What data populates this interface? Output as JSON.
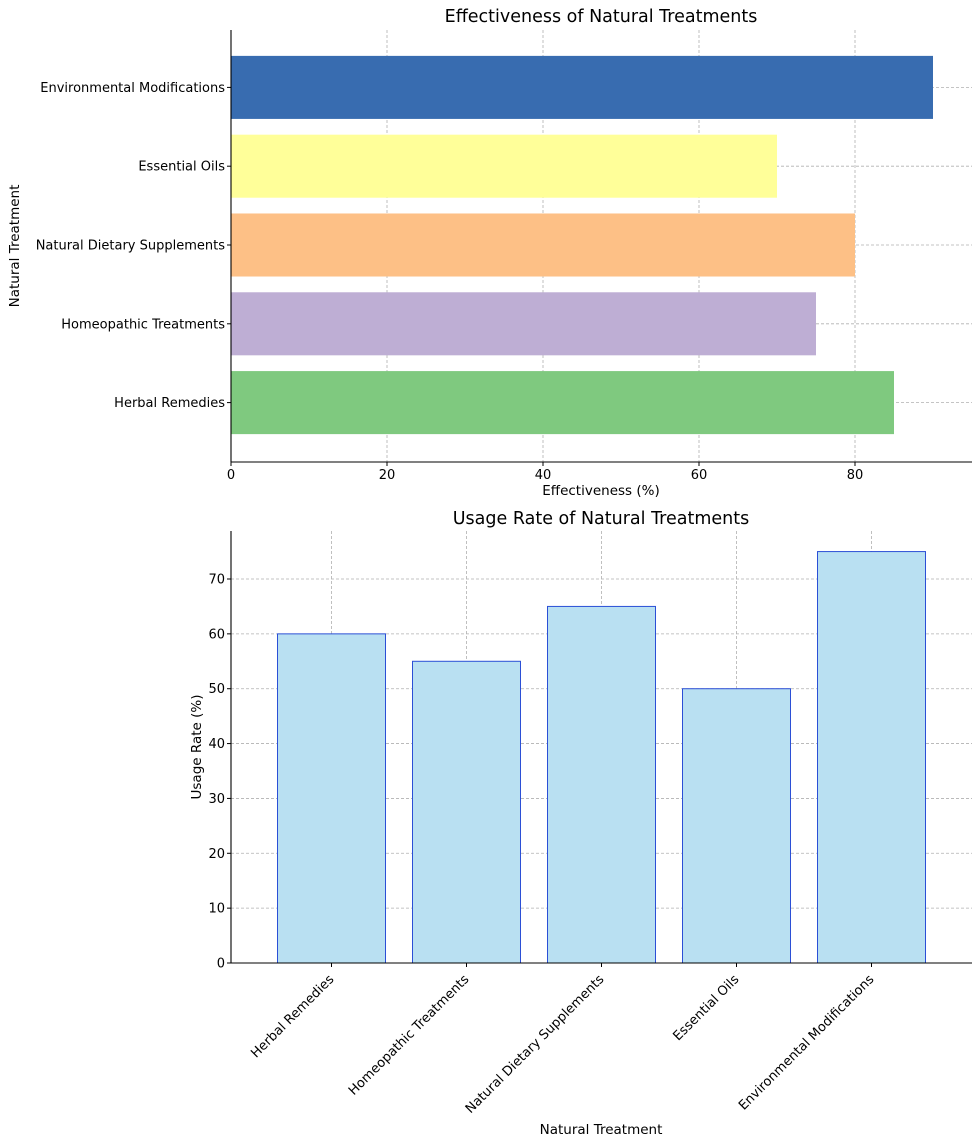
{
  "chart_data": [
    {
      "type": "bar",
      "orientation": "horizontal",
      "title": "Effectiveness of Natural Treatments",
      "xlabel": "Effectiveness (%)",
      "ylabel": "Natural Treatment",
      "categories": [
        "Herbal Remedies",
        "Homeopathic Treatments",
        "Natural Dietary Supplements",
        "Essential Oils",
        "Environmental Modifications"
      ],
      "values": [
        85,
        75,
        80,
        70,
        90
      ],
      "colors": [
        "#7fc97f",
        "#beaed4",
        "#fdc086",
        "#ffff99",
        "#386cb0"
      ],
      "xlim": [
        0,
        95
      ],
      "xticks": [
        0,
        20,
        40,
        60,
        80
      ],
      "grid": true,
      "legend": "none"
    },
    {
      "type": "bar",
      "orientation": "vertical",
      "title": "Usage Rate of Natural Treatments",
      "xlabel": "Natural Treatment",
      "ylabel": "Usage Rate (%)",
      "categories": [
        "Herbal Remedies",
        "Homeopathic Treatments",
        "Natural Dietary Supplements",
        "Essential Oils",
        "Environmental Modifications"
      ],
      "values": [
        60,
        55,
        65,
        50,
        75
      ],
      "bar_color": "#b9e0f2",
      "edge_color": "#2b4fd6",
      "ylim": [
        0,
        78.75
      ],
      "yticks": [
        0,
        10,
        20,
        30,
        40,
        50,
        60,
        70
      ],
      "grid": true,
      "legend": "none"
    }
  ]
}
